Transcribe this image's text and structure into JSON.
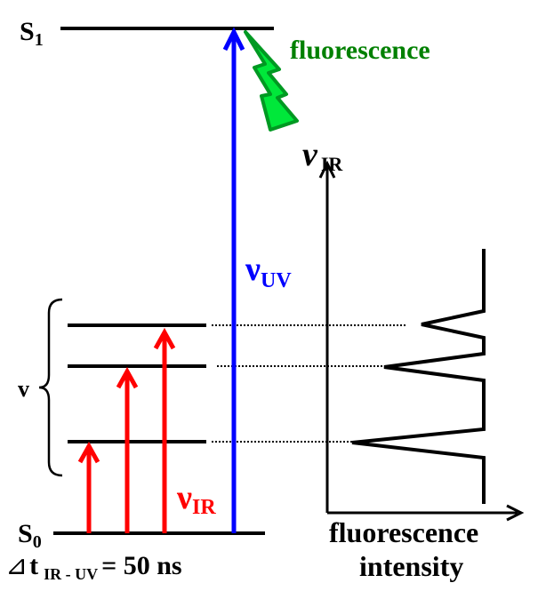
{
  "labels": {
    "s1_main": "S",
    "s1_sub": "1",
    "s0_main": "S",
    "s0_sub": "0",
    "fluorescence": "fluorescence",
    "nu_uv_main": "ν",
    "nu_uv_sub": "UV",
    "nu_ir_main": "ν",
    "nu_ir_sub": "IR",
    "axis_nu_main": "ν",
    "axis_nu_sub": "IR",
    "v": "v",
    "delta_symbol": "⊿",
    "delta_t": "t",
    "delta_sub": "IR - UV",
    "delta_value": "= 50 ns",
    "x_axis_line1": "fluorescence",
    "x_axis_line2": "intensity"
  },
  "colors": {
    "ir_arrow": "#ff0000",
    "uv_arrow": "#0000ff",
    "fluorescence_text": "#008000",
    "fluorescence_bolt": "#00cc33",
    "line": "#000000"
  }
}
